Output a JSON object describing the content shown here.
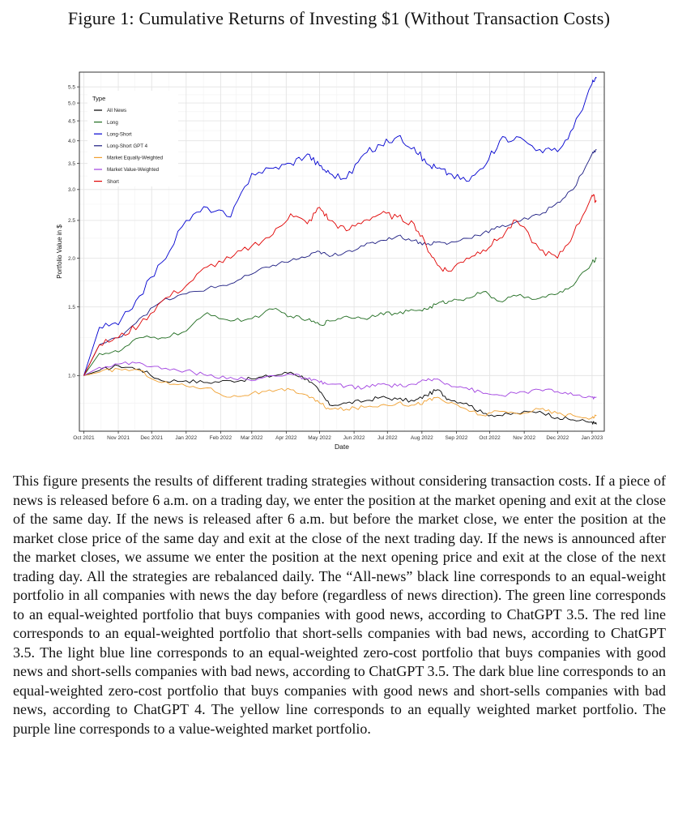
{
  "figure_title": "Figure 1: Cumulative Returns of Investing $1 (Without Transaction Costs)",
  "caption": "This figure presents the results of different trading strategies without considering transaction costs. If a piece of news is released before 6 a.m. on a trading day, we enter the position at the market opening and exit at the close of the same day. If the news is released after 6 a.m. but before the market close, we enter the position at the market close price of the same day and exit at the close of the next trading day. If the news is announced after the market closes, we assume we enter the position at the next opening price and exit at the close of the next trading day. All the strategies are rebalanced daily. The “All-news” black line corresponds to an equal-weight portfolio in all companies with news the day before (regardless of news direction). The green line corresponds to an equal-weighted portfolio that buys companies with good news, according to ChatGPT 3.5. The red line corresponds to an equal-weighted portfolio that short-sells companies with bad news, according to ChatGPT 3.5. The light blue line corresponds to an equal-weighted zero-cost portfolio that buys companies with good news and short-sells companies with bad news, according to ChatGPT 3.5. The dark blue line corresponds to an equal-weighted zero-cost portfolio that buys companies with good news and short-sells companies with bad news, according to ChatGPT 4. The yellow line corresponds to an equally weighted market portfolio. The purple line corresponds to a value-weighted market portfolio.",
  "chart_data": {
    "type": "line",
    "title": "",
    "xlabel": "Date",
    "ylabel": "Portfolio Value in $",
    "y_scale": "log",
    "ylim": [
      0.72,
      6.0
    ],
    "xlim": [
      "2021-09-27",
      "2023-01-12"
    ],
    "x_ticks": [
      "Oct 2021",
      "Nov 2021",
      "Dec 2021",
      "Jan 2022",
      "Feb 2022",
      "Mar 2022",
      "Apr 2022",
      "May 2022",
      "Jun 2022",
      "Jul 2022",
      "Aug 2022",
      "Sep 2022",
      "Oct 2022",
      "Nov 2022",
      "Dec 2022",
      "Jan 2023"
    ],
    "x_tick_dates": [
      "2021-10-01",
      "2021-11-01",
      "2021-12-01",
      "2022-01-01",
      "2022-02-01",
      "2022-03-01",
      "2022-04-01",
      "2022-05-01",
      "2022-06-01",
      "2022-07-01",
      "2022-08-01",
      "2022-09-01",
      "2022-10-01",
      "2022-11-01",
      "2022-12-01",
      "2023-01-01"
    ],
    "y_ticks": [
      "1.0",
      "1.5",
      "2.0",
      "2.5",
      "3.0",
      "3.5",
      "4.0",
      "4.5",
      "5.0",
      "5.5"
    ],
    "y_tick_values": [
      1.0,
      1.5,
      2.0,
      2.5,
      3.0,
      3.5,
      4.0,
      4.5,
      5.0,
      5.5
    ],
    "grid": true,
    "legend": {
      "title": "Type",
      "placement": "top-left"
    },
    "series": [
      {
        "name": "All News",
        "color": "#000000",
        "x": [
          "2021-10-01",
          "2021-10-15",
          "2021-11-01",
          "2021-11-20",
          "2021-12-10",
          "2022-01-01",
          "2022-01-20",
          "2022-02-10",
          "2022-03-01",
          "2022-03-20",
          "2022-04-05",
          "2022-04-20",
          "2022-05-01",
          "2022-05-10",
          "2022-05-25",
          "2022-06-10",
          "2022-06-25",
          "2022-07-10",
          "2022-07-25",
          "2022-08-05",
          "2022-08-15",
          "2022-08-25",
          "2022-09-10",
          "2022-09-25",
          "2022-10-10",
          "2022-10-25",
          "2022-11-15",
          "2022-12-01",
          "2022-12-15",
          "2023-01-01",
          "2023-01-05"
        ],
        "y": [
          1.0,
          1.03,
          1.06,
          1.04,
          0.97,
          0.97,
          0.96,
          0.97,
          0.98,
          1.0,
          1.02,
          0.98,
          0.91,
          0.84,
          0.85,
          0.86,
          0.88,
          0.87,
          0.86,
          0.89,
          0.92,
          0.87,
          0.85,
          0.8,
          0.79,
          0.8,
          0.81,
          0.78,
          0.77,
          0.76,
          0.75
        ]
      },
      {
        "name": "Long",
        "color": "#1e6b1e",
        "x": [
          "2021-10-01",
          "2021-10-15",
          "2021-11-01",
          "2021-11-20",
          "2021-12-10",
          "2022-01-01",
          "2022-01-20",
          "2022-02-10",
          "2022-03-01",
          "2022-03-20",
          "2022-04-05",
          "2022-04-20",
          "2022-05-01",
          "2022-05-10",
          "2022-05-25",
          "2022-06-10",
          "2022-06-25",
          "2022-07-10",
          "2022-07-25",
          "2022-08-05",
          "2022-08-15",
          "2022-08-25",
          "2022-09-10",
          "2022-09-25",
          "2022-10-10",
          "2022-10-25",
          "2022-11-15",
          "2022-12-01",
          "2022-12-15",
          "2023-01-01",
          "2023-01-05"
        ],
        "y": [
          1.0,
          1.14,
          1.15,
          1.25,
          1.25,
          1.3,
          1.45,
          1.38,
          1.4,
          1.48,
          1.42,
          1.39,
          1.35,
          1.38,
          1.42,
          1.4,
          1.45,
          1.44,
          1.47,
          1.48,
          1.53,
          1.55,
          1.58,
          1.64,
          1.55,
          1.6,
          1.58,
          1.62,
          1.7,
          1.95,
          2.0
        ]
      },
      {
        "name": "Long-Short",
        "color": "#0000d0",
        "x": [
          "2021-10-01",
          "2021-10-15",
          "2021-11-01",
          "2021-11-20",
          "2021-12-10",
          "2022-01-01",
          "2022-01-20",
          "2022-02-10",
          "2022-03-01",
          "2022-03-20",
          "2022-04-05",
          "2022-04-20",
          "2022-05-01",
          "2022-05-10",
          "2022-05-25",
          "2022-06-10",
          "2022-06-25",
          "2022-07-10",
          "2022-07-25",
          "2022-08-05",
          "2022-08-15",
          "2022-08-25",
          "2022-09-10",
          "2022-09-25",
          "2022-10-10",
          "2022-10-25",
          "2022-11-15",
          "2022-12-01",
          "2022-12-15",
          "2023-01-01",
          "2023-01-05"
        ],
        "y": [
          1.0,
          1.33,
          1.35,
          1.6,
          1.95,
          2.5,
          2.7,
          2.55,
          3.3,
          3.4,
          3.5,
          3.7,
          3.45,
          3.3,
          3.2,
          3.7,
          3.9,
          4.1,
          3.85,
          3.5,
          3.4,
          3.3,
          3.15,
          3.4,
          4.0,
          4.1,
          3.8,
          3.75,
          4.3,
          5.6,
          5.8
        ]
      },
      {
        "name": "Long-Short GPT 4",
        "color": "#1a1a80",
        "x": [
          "2021-10-01",
          "2021-10-15",
          "2021-11-01",
          "2021-11-20",
          "2021-12-10",
          "2022-01-01",
          "2022-01-20",
          "2022-02-10",
          "2022-03-01",
          "2022-03-20",
          "2022-04-05",
          "2022-04-20",
          "2022-05-01",
          "2022-05-10",
          "2022-05-25",
          "2022-06-10",
          "2022-06-25",
          "2022-07-10",
          "2022-07-25",
          "2022-08-05",
          "2022-08-15",
          "2022-08-25",
          "2022-09-10",
          "2022-09-25",
          "2022-10-10",
          "2022-10-25",
          "2022-11-15",
          "2022-12-01",
          "2022-12-15",
          "2023-01-01",
          "2023-01-05"
        ],
        "y": [
          1.0,
          1.2,
          1.25,
          1.4,
          1.55,
          1.62,
          1.67,
          1.72,
          1.82,
          1.92,
          1.97,
          2.02,
          2.08,
          2.02,
          2.08,
          2.15,
          2.22,
          2.28,
          2.22,
          2.17,
          2.2,
          2.18,
          2.25,
          2.32,
          2.4,
          2.48,
          2.58,
          2.78,
          3.0,
          3.7,
          3.8
        ]
      },
      {
        "name": "Market Equally-Weighted",
        "color": "#f0a030",
        "x": [
          "2021-10-01",
          "2021-10-15",
          "2021-11-01",
          "2021-11-20",
          "2021-12-10",
          "2022-01-01",
          "2022-01-20",
          "2022-02-10",
          "2022-03-01",
          "2022-03-20",
          "2022-04-05",
          "2022-04-20",
          "2022-05-01",
          "2022-05-10",
          "2022-05-25",
          "2022-06-10",
          "2022-06-25",
          "2022-07-10",
          "2022-07-25",
          "2022-08-05",
          "2022-08-15",
          "2022-08-25",
          "2022-09-10",
          "2022-09-25",
          "2022-10-10",
          "2022-10-25",
          "2022-11-15",
          "2022-12-01",
          "2022-12-15",
          "2023-01-01",
          "2023-01-05"
        ],
        "y": [
          1.0,
          1.02,
          1.04,
          1.03,
          0.96,
          0.94,
          0.93,
          0.88,
          0.9,
          0.91,
          0.92,
          0.89,
          0.85,
          0.82,
          0.82,
          0.83,
          0.84,
          0.85,
          0.84,
          0.86,
          0.88,
          0.85,
          0.82,
          0.79,
          0.81,
          0.8,
          0.82,
          0.8,
          0.79,
          0.78,
          0.79
        ]
      },
      {
        "name": "Market Value-Weighted",
        "color": "#a040e0",
        "x": [
          "2021-10-01",
          "2021-10-15",
          "2021-11-01",
          "2021-11-20",
          "2021-12-10",
          "2022-01-01",
          "2022-01-20",
          "2022-02-10",
          "2022-03-01",
          "2022-03-20",
          "2022-04-05",
          "2022-04-20",
          "2022-05-01",
          "2022-05-10",
          "2022-05-25",
          "2022-06-10",
          "2022-06-25",
          "2022-07-10",
          "2022-07-25",
          "2022-08-05",
          "2022-08-15",
          "2022-08-25",
          "2022-09-10",
          "2022-09-25",
          "2022-10-10",
          "2022-10-25",
          "2022-11-15",
          "2022-12-01",
          "2022-12-15",
          "2023-01-01",
          "2023-01-05"
        ],
        "y": [
          1.0,
          1.05,
          1.07,
          1.08,
          1.04,
          1.03,
          1.0,
          0.99,
          0.97,
          1.0,
          1.01,
          0.98,
          0.96,
          0.95,
          0.94,
          0.93,
          0.95,
          0.94,
          0.95,
          0.97,
          0.98,
          0.95,
          0.93,
          0.9,
          0.89,
          0.9,
          0.92,
          0.91,
          0.89,
          0.88,
          0.88
        ]
      },
      {
        "name": "Short",
        "color": "#e00000",
        "x": [
          "2021-10-01",
          "2021-10-15",
          "2021-11-01",
          "2021-11-20",
          "2021-12-10",
          "2022-01-01",
          "2022-01-20",
          "2022-02-10",
          "2022-03-01",
          "2022-03-20",
          "2022-04-05",
          "2022-04-20",
          "2022-05-01",
          "2022-05-10",
          "2022-05-25",
          "2022-06-10",
          "2022-06-25",
          "2022-07-10",
          "2022-07-25",
          "2022-08-05",
          "2022-08-15",
          "2022-08-25",
          "2022-09-10",
          "2022-09-25",
          "2022-10-10",
          "2022-10-25",
          "2022-11-15",
          "2022-12-01",
          "2022-12-15",
          "2023-01-01",
          "2023-01-05"
        ],
        "y": [
          1.0,
          1.2,
          1.25,
          1.35,
          1.55,
          1.7,
          1.9,
          2.0,
          2.15,
          2.3,
          2.6,
          2.45,
          2.7,
          2.5,
          2.35,
          2.5,
          2.6,
          2.55,
          2.45,
          2.15,
          1.92,
          1.85,
          2.0,
          2.1,
          2.25,
          2.5,
          2.1,
          2.0,
          2.3,
          2.9,
          2.8
        ]
      }
    ]
  }
}
